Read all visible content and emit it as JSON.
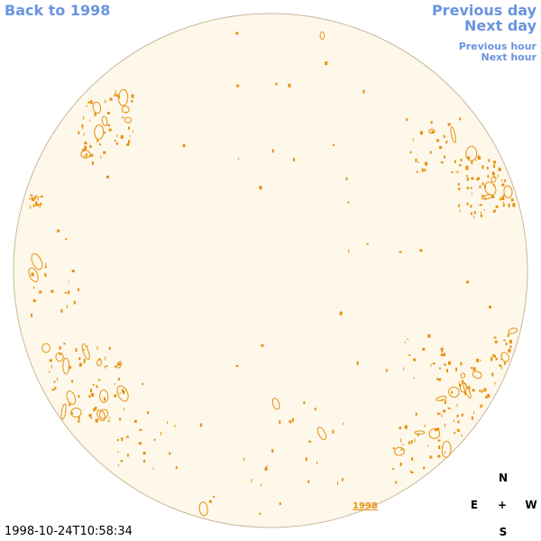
{
  "nav": {
    "back": "Back to 1998",
    "previous_day": "Previous day",
    "next_day": "Next day",
    "previous_hour": "Previous hour",
    "next_hour": "Next hour"
  },
  "disk_label": "1998",
  "compass": {
    "north": "N",
    "east": "E",
    "center": "+",
    "west": "W",
    "south": "S"
  },
  "timestamp": "1998-10-24T10:58:34"
}
